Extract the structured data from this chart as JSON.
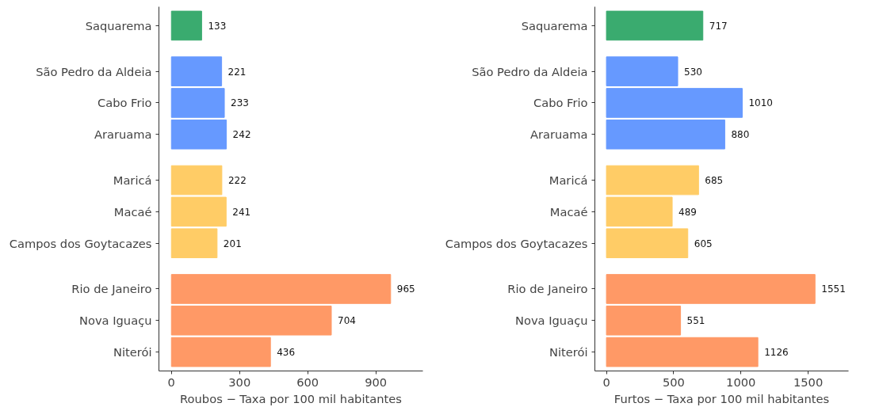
{
  "chart_data": [
    {
      "type": "bar",
      "orientation": "horizontal",
      "categories": [
        "Saquarema",
        "São Pedro da Aldeia",
        "Cabo Frio",
        "Araruama",
        "Maricá",
        "Macaé",
        "Campos dos Goytacazes",
        "Rio de Janeiro",
        "Nova Iguaçu",
        "Niterói"
      ],
      "values": [
        133,
        221,
        233,
        242,
        222,
        241,
        201,
        965,
        704,
        436
      ],
      "colors": [
        "#3aab6f",
        "#6699ff",
        "#6699ff",
        "#6699ff",
        "#ffcc66",
        "#ffcc66",
        "#ffcc66",
        "#ff9966",
        "#ff9966",
        "#ff9966"
      ],
      "xlabel": "Roubos − Taxa por 100 mil habitantes",
      "xlim": [
        -55,
        1107
      ],
      "xticks": [
        0,
        300,
        600,
        900
      ],
      "data_labels": true,
      "grid": false,
      "legend": false
    },
    {
      "type": "bar",
      "orientation": "horizontal",
      "categories": [
        "Saquarema",
        "São Pedro da Aldeia",
        "Cabo Frio",
        "Araruama",
        "Maricá",
        "Macaé",
        "Campos dos Goytacazes",
        "Rio de Janeiro",
        "Nova Iguaçu",
        "Niterói"
      ],
      "values": [
        717,
        530,
        1010,
        880,
        685,
        489,
        605,
        1551,
        551,
        1126
      ],
      "colors": [
        "#3aab6f",
        "#6699ff",
        "#6699ff",
        "#6699ff",
        "#ffcc66",
        "#ffcc66",
        "#ffcc66",
        "#ff9966",
        "#ff9966",
        "#ff9966"
      ],
      "xlabel": "Furtos − Taxa por 100 mil habitantes",
      "xlim": [
        -86,
        1800
      ],
      "xticks": [
        0,
        500,
        1000,
        1500
      ],
      "data_labels": true,
      "grid": false,
      "legend": false
    }
  ]
}
